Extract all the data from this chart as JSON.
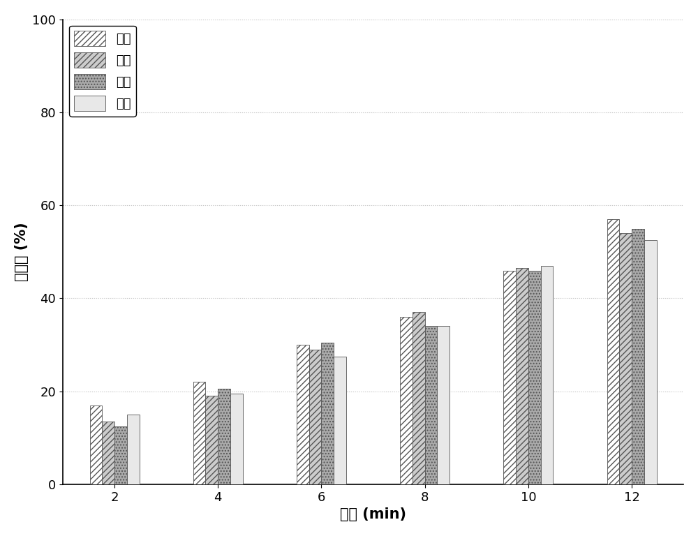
{
  "title": "",
  "xlabel": "时间 (min)",
  "ylabel": "去除率 (%)",
  "x_ticks": [
    2,
    4,
    6,
    8,
    10,
    12
  ],
  "ylim": [
    0,
    100
  ],
  "yticks": [
    0,
    20,
    40,
    60,
    80,
    100
  ],
  "series": [
    {
      "label": "七溨",
      "values": [
        17,
        22,
        30,
        36,
        46,
        57
      ],
      "hatch": "////",
      "facecolor": "#ffffff",
      "edgecolor": "#555555"
    },
    {
      "label": "六溨",
      "values": [
        13.5,
        19,
        29,
        37,
        46.5,
        54
      ],
      "hatch": "////",
      "facecolor": "#cccccc",
      "edgecolor": "#555555"
    },
    {
      "label": "五溨",
      "values": [
        12.5,
        20.5,
        30.5,
        34,
        46,
        55
      ],
      "hatch": "....",
      "facecolor": "#aaaaaa",
      "edgecolor": "#555555"
    },
    {
      "label": "四溨",
      "values": [
        15,
        19.5,
        27.5,
        34,
        47,
        52.5
      ],
      "hatch": "====",
      "facecolor": "#e8e8e8",
      "edgecolor": "#555555"
    }
  ],
  "bar_width": 0.12,
  "group_positions": [
    1,
    2,
    3,
    4,
    5,
    6
  ],
  "legend_loc": "upper left",
  "legend_fontsize": 13,
  "axis_fontsize": 15,
  "tick_fontsize": 13,
  "background_color": "#ffffff",
  "grid_color": "#bbbbbb",
  "figure_width": 10.0,
  "figure_height": 7.68
}
